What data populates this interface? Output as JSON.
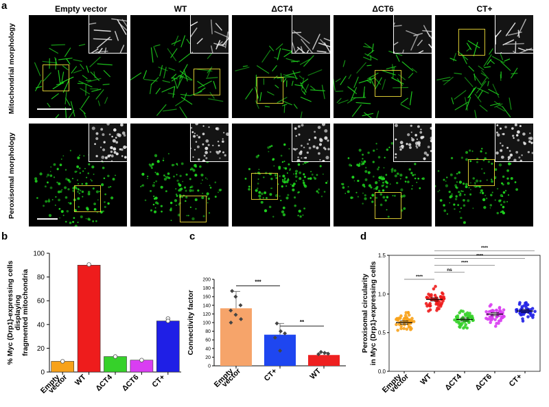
{
  "panel_letters": {
    "a": "a",
    "b": "b",
    "c": "c",
    "d": "d"
  },
  "panel_a": {
    "columns": [
      "Empty vector",
      "WT",
      "ΔCT4",
      "ΔCT6",
      "CT+"
    ],
    "rows": [
      "Mitochondrial morphology",
      "Peroxisomal morphology"
    ]
  },
  "colors": {
    "orange": "#f7a21b",
    "red": "#ee1c1c",
    "green": "#36d12a",
    "magenta": "#d93ef2",
    "blue": "#1f1fe6",
    "salmon": "#f6a46a",
    "blue_c": "#1e46f0",
    "red_c": "#ee2020",
    "fluor_green": "#1fd61f"
  },
  "chart_data": [
    {
      "type": "bar",
      "panel": "b",
      "ylabel": "% Myc (Drp1)-expressing cells displaying fragmented mitochondria",
      "ylabel_lines": [
        "% Myc (Drp1)-expressing cells",
        "displaying",
        "fragmented mitochondria"
      ],
      "categories": [
        "Empty vector",
        "WT",
        "ΔCT4",
        "ΔCT6",
        "CT+"
      ],
      "category_lines": [
        [
          "Empty",
          "vector"
        ],
        [
          "WT"
        ],
        [
          "ΔCT4"
        ],
        [
          "ΔCT6"
        ],
        [
          "CT+"
        ]
      ],
      "values": [
        9,
        90,
        13,
        10,
        43
      ],
      "points": [
        [
          9
        ],
        [
          90.5
        ],
        [
          13
        ],
        [
          10
        ],
        [
          45,
          43
        ]
      ],
      "ylim": [
        0,
        100
      ],
      "yticks": [
        "0",
        "20",
        "40",
        "60",
        "80",
        "100"
      ]
    },
    {
      "type": "bar",
      "panel": "c",
      "ylabel": "Connectivity factor",
      "categories": [
        "Empty vector",
        "CT+",
        "WT"
      ],
      "category_lines": [
        [
          "Empty",
          "vector"
        ],
        [
          "CT+"
        ],
        [
          "WT"
        ]
      ],
      "values": [
        133,
        72,
        25
      ],
      "error_upper": [
        172,
        98,
        31
      ],
      "points": [
        [
          173,
          160,
          140,
          128,
          118,
          108,
          100
        ],
        [
          98,
          80,
          75,
          65,
          35
        ],
        [
          32,
          30,
          28,
          27
        ]
      ],
      "ylim": [
        0,
        200
      ],
      "yticks": [
        "0",
        "20",
        "40",
        "60",
        "80",
        "100",
        "120",
        "140",
        "160",
        "180",
        "200"
      ],
      "significance": [
        {
          "from": 0,
          "to": 1,
          "label": "***",
          "y": 185
        },
        {
          "from": 1,
          "to": 2,
          "label": "**",
          "y": 92
        }
      ]
    },
    {
      "type": "scatter",
      "panel": "d",
      "ylabel": "Peroxisomal circularity in Myc (Drp1)-expressing cells",
      "ylabel_lines": [
        "Peroxisomal circularity",
        "in Myc (Drp1)-expressing cells"
      ],
      "categories": [
        "Empty vector",
        "WT",
        "ΔCT4",
        "ΔCT6",
        "CT+"
      ],
      "category_lines": [
        [
          "Empty",
          "vector"
        ],
        [
          "WT"
        ],
        [
          "ΔCT4"
        ],
        [
          "ΔCT6"
        ],
        [
          "CT+"
        ]
      ],
      "series": [
        {
          "center": 0.63,
          "spread": 0.1,
          "n": 46
        },
        {
          "center": 0.93,
          "spread": 0.14,
          "n": 52
        },
        {
          "center": 0.67,
          "spread": 0.11,
          "n": 48
        },
        {
          "center": 0.74,
          "spread": 0.13,
          "n": 48
        },
        {
          "center": 0.78,
          "spread": 0.11,
          "n": 48
        }
      ],
      "ylim": [
        0,
        1.5
      ],
      "yticks": [
        "0.0",
        "0.5",
        "1.0",
        "1.5"
      ],
      "significance": [
        {
          "from": 0,
          "to": 1,
          "label": "****",
          "y": 1.19
        },
        {
          "from": 1,
          "to": 2,
          "label": "ns",
          "y": 1.28
        },
        {
          "from": 1,
          "to": 3,
          "label": "****",
          "y": 1.37
        },
        {
          "from": 1,
          "to": 4,
          "label": "****",
          "y": 1.46
        },
        {
          "from": 1,
          "to": 5,
          "label": "****",
          "y": 1.56
        }
      ]
    }
  ]
}
